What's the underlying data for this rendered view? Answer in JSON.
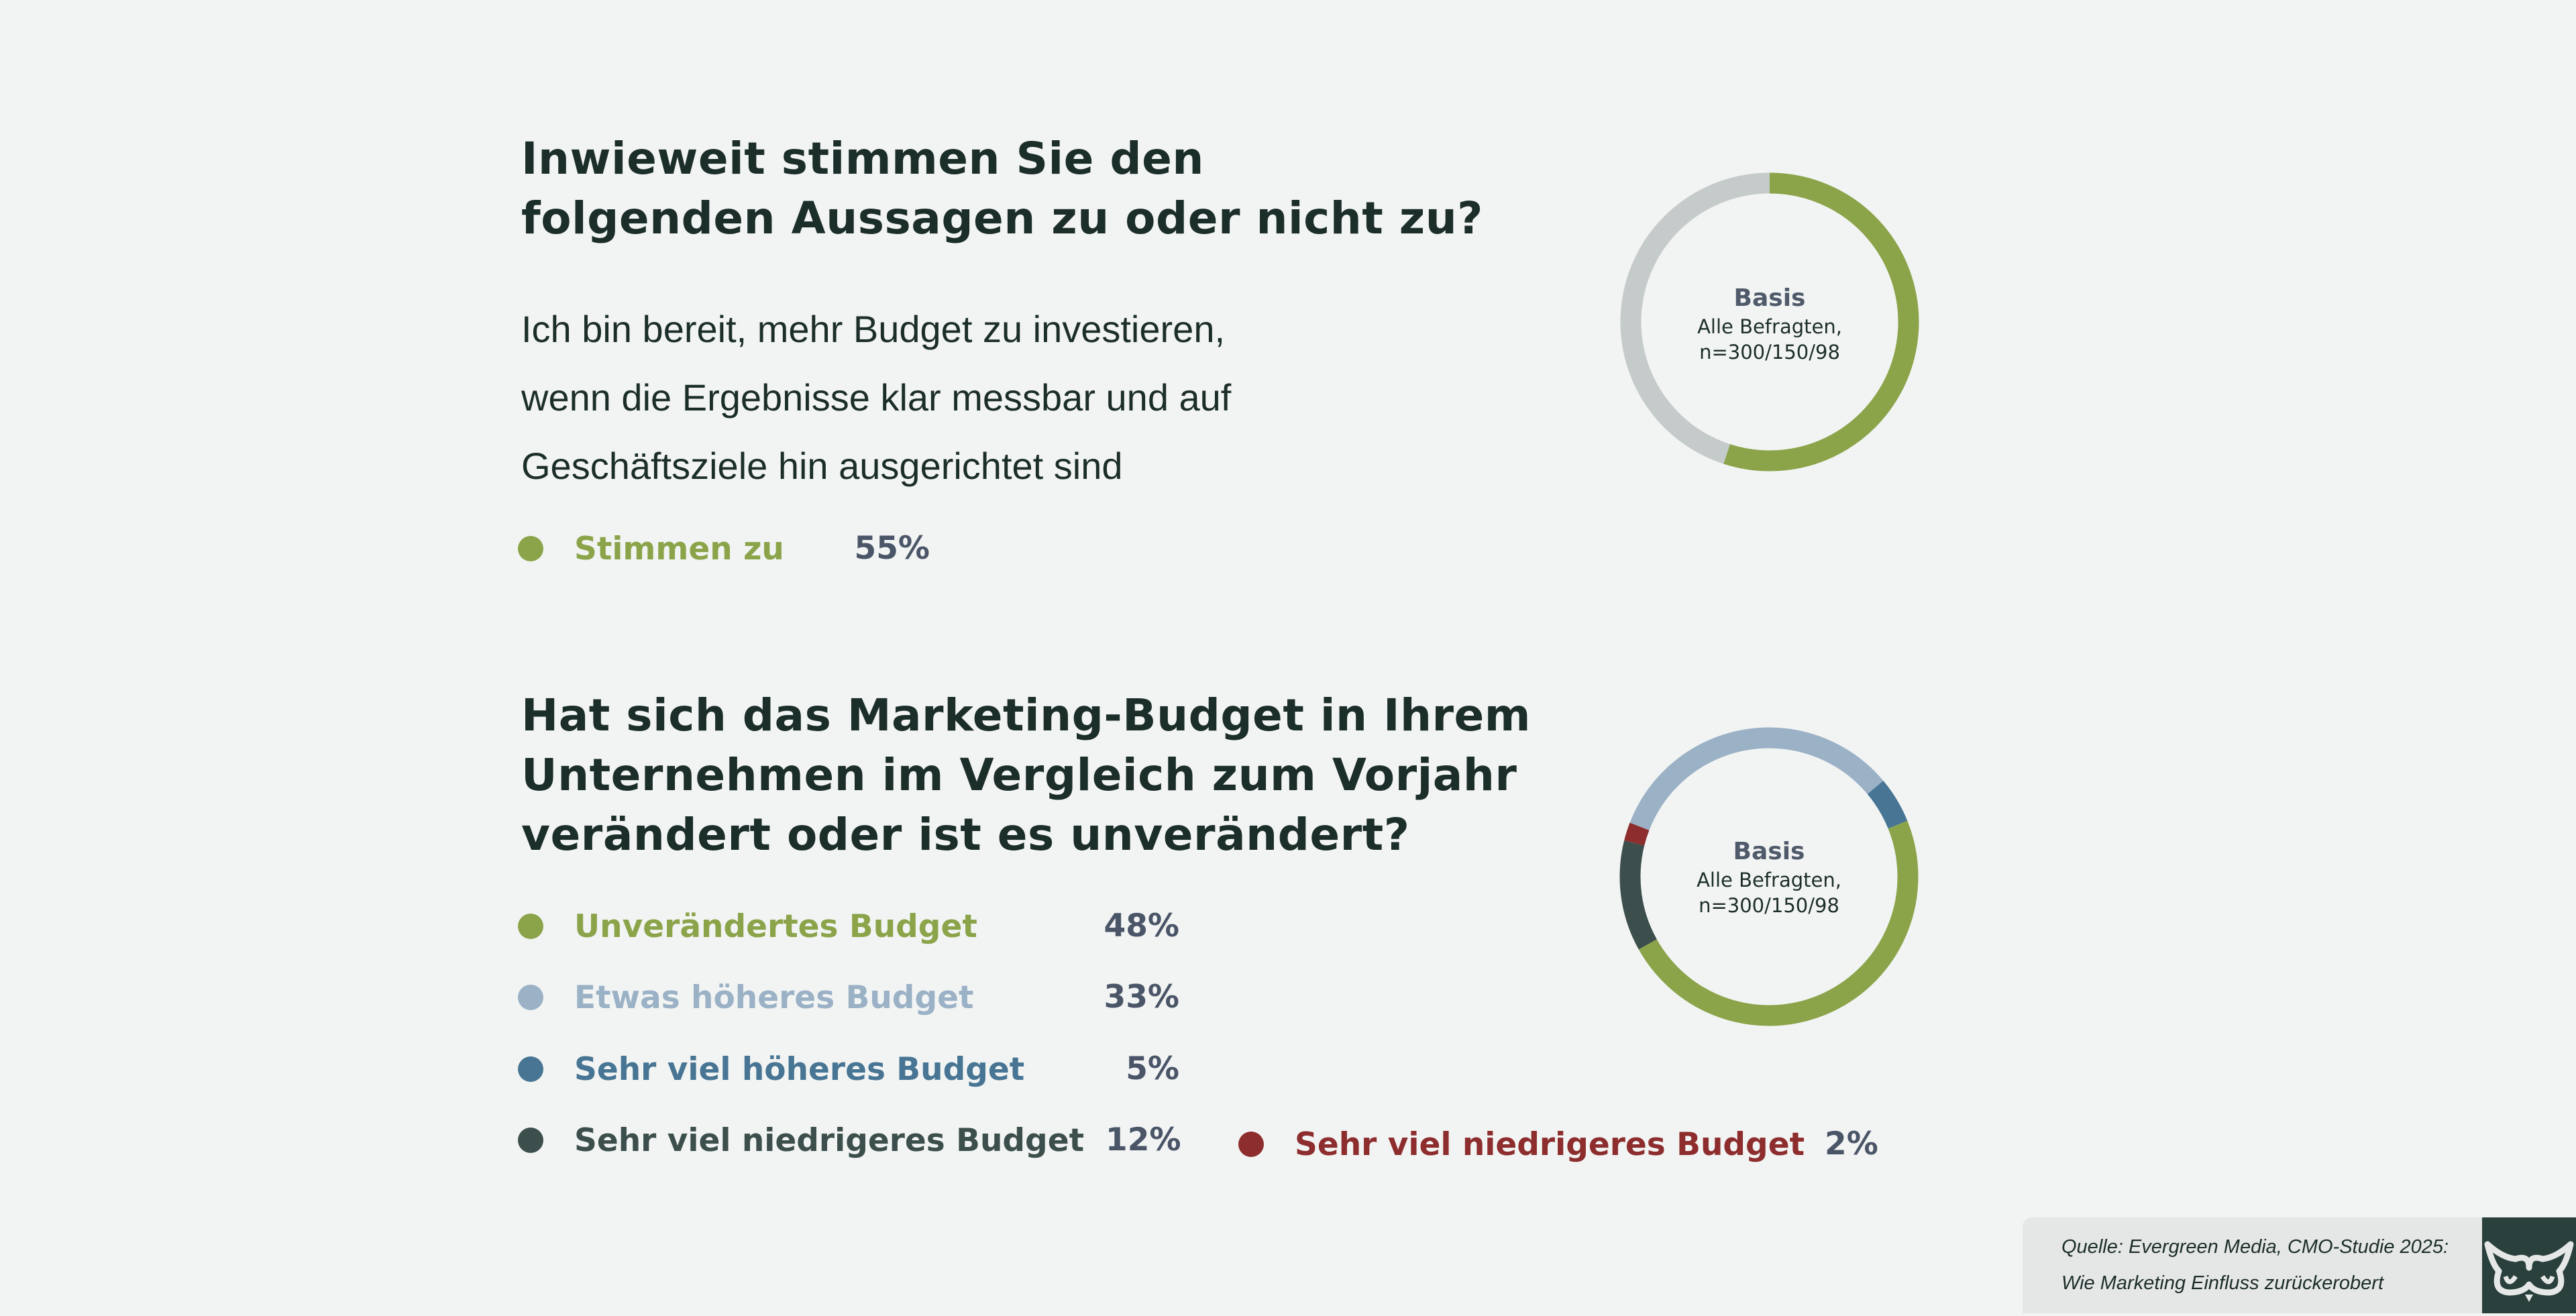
{
  "colors": {
    "background": "#f2f4f3",
    "title": "#1c2e2a",
    "green": "#8ba44a",
    "light_blue": "#9ab1c6",
    "blue": "#477593",
    "dark": "#3c4f4c",
    "red": "#8d2d2d",
    "gray": "#c5cbca"
  },
  "section1": {
    "title_lines": [
      "Inwieweit stimmen Sie den",
      "folgenden Aussagen zu oder nicht zu?"
    ],
    "statement_lines": [
      "Ich bin bereit, mehr Budget zu investieren,",
      "wenn die Ergebnisse klar messbar und auf",
      "Geschäftsziele hin ausgerichtet sind"
    ],
    "legend": [
      {
        "label": "Stimmen zu",
        "value": "55%"
      }
    ]
  },
  "section2": {
    "title_lines": [
      "Hat sich das Marketing-Budget in Ihrem",
      "Unternehmen im Vergleich zum Vorjahr",
      "verändert oder ist es unverändert?"
    ],
    "legend": [
      {
        "label": "Unverändertes Budget",
        "value": "48%"
      },
      {
        "label": "Etwas höheres Budget",
        "value": "33%"
      },
      {
        "label": "Sehr viel höheres Budget",
        "value": "5%"
      },
      {
        "label": "Sehr viel niedrigeres Budget",
        "value": "12%"
      },
      {
        "label": "Sehr viel niedrigeres Budget",
        "value": "2%"
      }
    ]
  },
  "basis": {
    "title": "Basis",
    "line1": "Alle Befragten,",
    "line2": "n=300/150/98"
  },
  "source": {
    "line1": "Quelle: Evergreen Media, CMO-Studie 2025:",
    "line2": "Wie Marketing Einfluss zurückerobert"
  },
  "chart_data": [
    {
      "type": "pie",
      "title": "Inwieweit stimmen Sie den folgenden Aussagen zu oder nicht zu?",
      "start_angle_deg": 0,
      "slices": [
        {
          "label": "Stimmen zu",
          "value": 55,
          "color": "#8ba44a"
        },
        {
          "label": "Rest",
          "value": 45,
          "color": "#c5cbca"
        }
      ]
    },
    {
      "type": "pie",
      "title": "Hat sich das Marketing-Budget in Ihrem Unternehmen im Vergleich zum Vorjahr verändert oder ist es unverändert?",
      "start_angle_deg": 68,
      "slices": [
        {
          "label": "Unverändertes Budget",
          "value": 48,
          "color": "#8ba44a"
        },
        {
          "label": "Sehr viel niedrigeres Budget",
          "value": 12,
          "color": "#3c4f4c"
        },
        {
          "label": "Sehr viel niedrigeres Budget",
          "value": 2,
          "color": "#8d2d2d"
        },
        {
          "label": "Etwas höheres Budget",
          "value": 33,
          "color": "#9ab1c6"
        },
        {
          "label": "Sehr viel höheres Budget",
          "value": 5,
          "color": "#477593"
        }
      ]
    }
  ]
}
